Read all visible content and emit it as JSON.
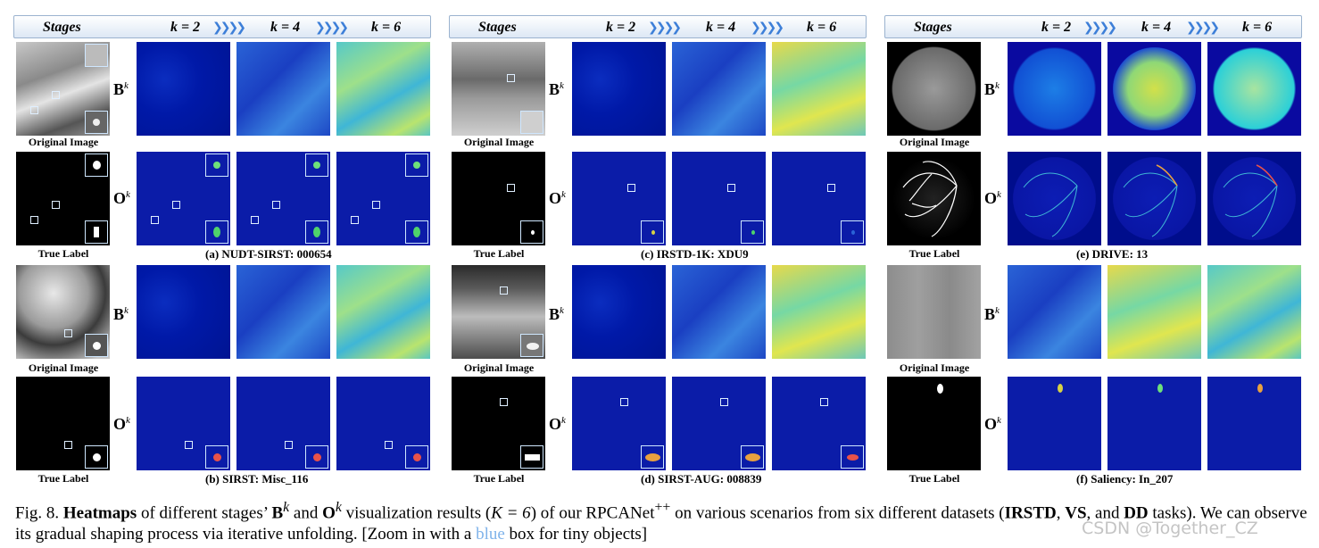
{
  "stage_header": {
    "stages": "Stages",
    "k2": "k = 2",
    "k4": "k = 4",
    "k6": "k = 6",
    "chevrons": "❯❯❯❯"
  },
  "row_labels": {
    "B": "B",
    "O": "O",
    "sup": "k"
  },
  "image_labels": {
    "original": "Original Image",
    "true_label": "True Label"
  },
  "panels": [
    {
      "top_caption": "(a) NUDT-SIRST:  000654",
      "bottom_caption": "(b) SIRST:  Misc_116"
    },
    {
      "top_caption": "(c) IRSTD-1K:  XDU9",
      "bottom_caption": "(d) SIRST-AUG: 008839"
    },
    {
      "top_caption": "(e) DRIVE: 13",
      "bottom_caption": "(f) Saliency: In_207"
    }
  ],
  "caption": {
    "fig_num": "Fig. 8.",
    "bold1": "Heatmaps",
    "t1": " of different stages’ ",
    "B": "B",
    "t2": " and ",
    "O": "O",
    "t3": " visualization results (",
    "K": "K = 6",
    "t4": ") of our RPCANet",
    "plusplus": "++",
    "t5": " on various scenarios from six different datasets (",
    "irstd": "IRSTD",
    "comma": ",",
    "vs": "VS",
    "t6": ", and ",
    "dd": "DD",
    "t7": " tasks). We can observe its gradual shaping process via iterative unfolding. [Zoom in with a ",
    "blue_word": "blue",
    "t8": " box for tiny objects]"
  },
  "watermark": "CSDN @Together_CZ",
  "colors": {
    "header_border": "#9bb3cf",
    "chevron": "#3d7fd8",
    "zoom_box": "#cfe7ff",
    "blue_word": "#7fb3ea"
  }
}
